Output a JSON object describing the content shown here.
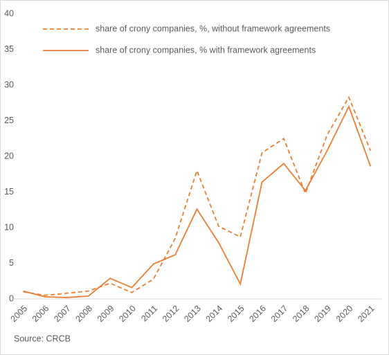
{
  "chart_data": {
    "type": "line",
    "categories": [
      "2005",
      "2006",
      "2007",
      "2008",
      "2009",
      "2010",
      "2011",
      "2012",
      "2013",
      "2014",
      "2015",
      "2016",
      "2017",
      "2018",
      "2019",
      "2020",
      "2021"
    ],
    "series": [
      {
        "name": "share of crony companies, %, without framework agreements",
        "color": "#ED7D31",
        "style": "dashed",
        "values": [
          1.0,
          0.5,
          0.8,
          1.1,
          2.2,
          0.9,
          2.8,
          8.5,
          18,
          10.2,
          8.7,
          20.5,
          22.5,
          14.8,
          23,
          28.3,
          20.8
        ]
      },
      {
        "name": "share of crony companies, % with framework agreements",
        "color": "#ED7D31",
        "style": "solid",
        "values": [
          1.1,
          0.3,
          0.2,
          0.4,
          2.9,
          1.6,
          4.9,
          6.2,
          12.6,
          7.9,
          2.1,
          16.4,
          19,
          15.2,
          20.8,
          27,
          18.6
        ]
      }
    ],
    "ylim": [
      0,
      40
    ],
    "yticks": [
      0,
      5,
      10,
      15,
      20,
      25,
      30,
      35,
      40
    ],
    "grid": false,
    "legend": "top",
    "source": "Source: CRCB"
  }
}
